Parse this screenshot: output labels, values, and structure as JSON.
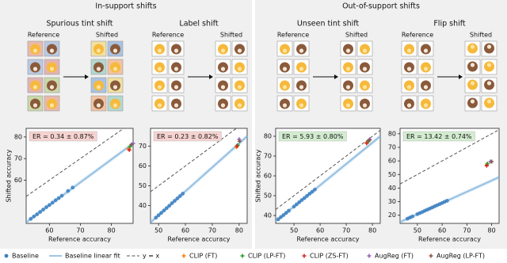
{
  "groups": [
    {
      "title": "In-support shifts"
    },
    {
      "title": "Out-of-support shifts"
    }
  ],
  "chart_data": [
    {
      "type": "scatter",
      "title": "Spurious tint shift",
      "reference_label": "Reference",
      "shifted_label": "Shifted",
      "annotation": "ER = 0.34 ± 0.87%",
      "annotation_color": "#f6d3d0",
      "xlabel": "Reference accuracy",
      "ylabel": "Shifted accuracy",
      "xlim": [
        52.5,
        87
      ],
      "ylim": [
        40,
        84
      ],
      "xticks": [
        60,
        70,
        80
      ],
      "yticks": [
        60,
        70,
        80
      ],
      "reference_line": {
        "name": "y = x",
        "color": "#555555"
      },
      "series": [
        {
          "name": "Baseline",
          "color": "#3b7fc0",
          "x": [
            54,
            55,
            56,
            57,
            58,
            59,
            60,
            61,
            62,
            63,
            64,
            66,
            67.5
          ],
          "values": [
            42.1,
            43.2,
            44.2,
            45.3,
            46.4,
            47.5,
            48.5,
            49.6,
            50.7,
            51.7,
            52.8,
            55,
            56.6
          ]
        },
        {
          "name": "Baseline linear fit",
          "color": "#7fb3dc",
          "x": [
            52.5,
            87
          ],
          "values": [
            40.5,
            77
          ]
        },
        {
          "name": "CLIP (FT)",
          "color": "#ff7f0e",
          "x": [
            85.5
          ],
          "values": [
            74.5
          ]
        },
        {
          "name": "CLIP (LP-FT)",
          "color": "#2ca02c",
          "x": [
            86
          ],
          "values": [
            75.5
          ]
        },
        {
          "name": "CLIP (ZS-FT)",
          "color": "#d62728",
          "x": [
            85.8
          ],
          "values": [
            74
          ]
        },
        {
          "name": "AugReg (FT)",
          "color": "#9467bd",
          "x": [
            87
          ],
          "values": [
            77
          ]
        },
        {
          "name": "AugReg (LP-FT)",
          "color": "#8c564b",
          "x": [
            86.5
          ],
          "values": [
            76.5
          ]
        }
      ]
    },
    {
      "type": "scatter",
      "title": "Label shift",
      "reference_label": "Reference",
      "shifted_label": "Shifted",
      "annotation": "ER = 0.23 ± 0.82%",
      "annotation_color": "#f6d3d0",
      "xlabel": "Reference accuracy",
      "xlim": [
        47,
        83
      ],
      "ylim": [
        31,
        79
      ],
      "xticks": [
        50,
        60,
        70,
        80
      ],
      "yticks": [
        40,
        50,
        60,
        70
      ],
      "series": [
        {
          "x": [
            49,
            50,
            51,
            52,
            53,
            54,
            55,
            56,
            57,
            58,
            59
          ],
          "values": [
            33.9,
            35.1,
            36.3,
            37.5,
            38.7,
            39.9,
            41.2,
            42.4,
            43.6,
            44.8,
            46.0
          ]
        },
        {
          "x": [
            47,
            83
          ],
          "values": [
            31.5,
            75
          ]
        },
        {
          "x": [
            79
          ],
          "values": [
            69.5
          ]
        },
        {
          "x": [
            79.5
          ],
          "values": [
            70.5
          ]
        },
        {
          "x": [
            79.2
          ],
          "values": [
            70
          ]
        },
        {
          "x": [
            80
          ],
          "values": [
            73.5
          ]
        },
        {
          "x": [
            80.2
          ],
          "values": [
            72.5
          ]
        }
      ]
    },
    {
      "type": "scatter",
      "title": "Unseen tint shift",
      "reference_label": "Reference",
      "shifted_label": "Shifted",
      "annotation": "ER = 5.93 ± 0.80%",
      "annotation_color": "#d3ecd0",
      "xlabel": "Reference accuracy",
      "ylabel": "Shifted accuracy",
      "xlim": [
        43,
        83
      ],
      "ylim": [
        36,
        84
      ],
      "xticks": [
        50,
        60,
        70,
        80
      ],
      "yticks": [
        40,
        50,
        60,
        70,
        80
      ],
      "series": [
        {
          "x": [
            44,
            45,
            46,
            47,
            48,
            50,
            51,
            52,
            53,
            54,
            55,
            56,
            57,
            58
          ],
          "values": [
            38.1,
            39.2,
            40.2,
            41.3,
            42.4,
            44.5,
            45.6,
            46.7,
            47.8,
            48.8,
            49.9,
            51,
            52,
            53.1
          ]
        },
        {
          "x": [
            43,
            83
          ],
          "values": [
            37,
            80
          ]
        },
        {
          "x": [
            78
          ],
          "values": [
            77
          ]
        },
        {
          "x": [
            78.5
          ],
          "values": [
            77.5
          ]
        },
        {
          "x": [
            77.8
          ],
          "values": [
            76.5
          ]
        },
        {
          "x": [
            79
          ],
          "values": [
            78.5
          ]
        },
        {
          "x": [
            78.8
          ],
          "values": [
            78
          ]
        }
      ]
    },
    {
      "type": "scatter",
      "title": "Flip shift",
      "reference_label": "Reference",
      "shifted_label": "Shifted",
      "annotation": "ER = 13.42 ± 0.74%",
      "annotation_color": "#d3ecd0",
      "xlabel": "Reference accuracy",
      "xlim": [
        43,
        83
      ],
      "ylim": [
        14,
        84
      ],
      "xticks": [
        50,
        60,
        70,
        80
      ],
      "yticks": [
        20,
        30,
        40,
        50,
        60,
        70,
        80
      ],
      "series": [
        {
          "x": [
            46,
            47,
            48,
            50,
            51,
            52,
            53,
            54,
            55,
            56,
            57,
            58,
            59,
            60,
            61,
            62
          ],
          "values": [
            17.5,
            18.3,
            19.1,
            20.8,
            21.6,
            22.4,
            23.3,
            24.1,
            24.9,
            25.7,
            26.6,
            27.4,
            28.2,
            29.0,
            29.9,
            30.7
          ]
        },
        {
          "x": [
            43,
            83
          ],
          "values": [
            15,
            48
          ]
        },
        {
          "x": [
            78
          ],
          "values": [
            57
          ]
        },
        {
          "x": [
            78.3
          ],
          "values": [
            58
          ]
        },
        {
          "x": [
            78
          ],
          "values": [
            56.5
          ]
        },
        {
          "x": [
            79.5
          ],
          "values": [
            59.5
          ]
        },
        {
          "x": [
            80
          ],
          "values": [
            59.5
          ]
        }
      ]
    }
  ]
}
